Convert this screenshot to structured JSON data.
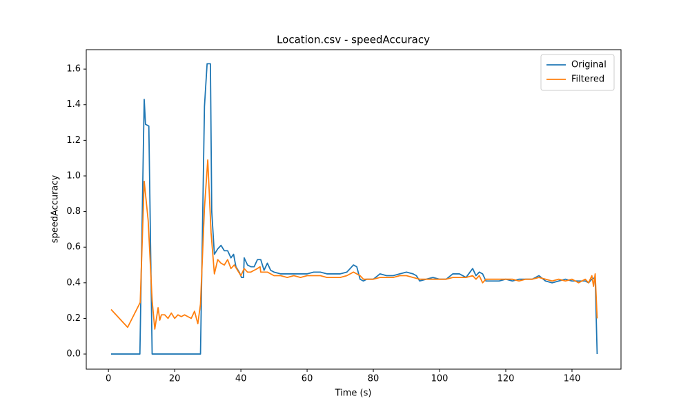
{
  "chart_data": {
    "type": "line",
    "title": "Location.csv - speedAccuracy",
    "x_label": "Time (s)",
    "y_label": "speedAccuracy",
    "xlim": [
      -6.7,
      154.8
    ],
    "ylim": [
      -0.085,
      1.709
    ],
    "xticks": [
      0,
      20,
      40,
      60,
      80,
      100,
      120,
      140
    ],
    "yticks": [
      {
        "value": 0,
        "label": "0.0"
      },
      0.2,
      0.4,
      0.6,
      0.8,
      {
        "value": 1,
        "label": "1.0"
      },
      1.2,
      1.4,
      1.6
    ],
    "legend": "upper right",
    "grid": false,
    "series": [
      {
        "name": "Original",
        "color": "#1f77b4",
        "x": [
          0.8,
          9.5,
          10.8,
          11.2,
          12.2,
          13.2,
          27.8,
          29,
          29.8,
          30.8,
          31.2,
          32,
          33,
          34,
          35,
          36,
          37,
          37.8,
          38.5,
          39.5,
          40.2,
          40.8,
          41,
          42,
          43,
          44,
          45,
          46,
          47,
          48,
          49,
          50,
          52,
          54,
          56,
          58,
          60,
          62,
          64,
          66,
          68,
          70,
          72,
          74,
          75,
          76,
          77,
          78,
          80,
          82,
          84,
          86,
          88,
          90,
          92,
          93,
          94,
          96,
          98,
          100,
          102,
          104,
          106,
          108,
          110,
          111,
          112,
          113,
          114,
          116,
          118,
          120,
          122,
          124,
          126,
          128,
          130,
          132,
          134,
          136,
          138,
          140,
          142,
          144,
          145,
          146,
          147,
          147.6
        ],
        "values": [
          0,
          0,
          1.43,
          1.29,
          1.28,
          0,
          0,
          1.39,
          1.63,
          1.63,
          0.8,
          0.56,
          0.59,
          0.61,
          0.58,
          0.58,
          0.54,
          0.56,
          0.49,
          0.46,
          0.43,
          0.43,
          0.54,
          0.5,
          0.49,
          0.49,
          0.53,
          0.53,
          0.47,
          0.51,
          0.47,
          0.46,
          0.45,
          0.45,
          0.45,
          0.45,
          0.45,
          0.46,
          0.46,
          0.45,
          0.45,
          0.45,
          0.46,
          0.5,
          0.49,
          0.42,
          0.41,
          0.42,
          0.42,
          0.45,
          0.44,
          0.44,
          0.45,
          0.46,
          0.45,
          0.44,
          0.41,
          0.42,
          0.43,
          0.42,
          0.42,
          0.45,
          0.45,
          0.43,
          0.48,
          0.44,
          0.46,
          0.45,
          0.41,
          0.41,
          0.41,
          0.42,
          0.41,
          0.42,
          0.42,
          0.42,
          0.44,
          0.41,
          0.4,
          0.41,
          0.42,
          0.41,
          0.41,
          0.41,
          0.4,
          0.42,
          0.43,
          0
        ]
      },
      {
        "name": "Filtered",
        "color": "#ff7f0e",
        "x": [
          0.8,
          5.8,
          9.6,
          10.8,
          12,
          13.2,
          14,
          15,
          15.5,
          16,
          17,
          18,
          19,
          20,
          21,
          22,
          23,
          24,
          25,
          26,
          27,
          27.8,
          29,
          30,
          31,
          32,
          33,
          34,
          35,
          36,
          37,
          38,
          39,
          40,
          41,
          42,
          43,
          44,
          45,
          45.8,
          46,
          48,
          50,
          52,
          54,
          56,
          58,
          60,
          62,
          64,
          66,
          68,
          70,
          72,
          74,
          76,
          77,
          78,
          80,
          82,
          84,
          86,
          88,
          90,
          92,
          94,
          96,
          98,
          100,
          102,
          104,
          106,
          108,
          110,
          111,
          112,
          113,
          114,
          116,
          118,
          120,
          122,
          124,
          126,
          128,
          130,
          132,
          134,
          136,
          138,
          140,
          142,
          144,
          145,
          146,
          146.5,
          147,
          147.6
        ],
        "values": [
          0.25,
          0.15,
          0.29,
          0.97,
          0.75,
          0.3,
          0.14,
          0.26,
          0.19,
          0.22,
          0.22,
          0.2,
          0.23,
          0.2,
          0.22,
          0.21,
          0.22,
          0.21,
          0.2,
          0.24,
          0.17,
          0.28,
          0.82,
          1.09,
          0.68,
          0.45,
          0.53,
          0.51,
          0.5,
          0.53,
          0.48,
          0.5,
          0.47,
          0.44,
          0.48,
          0.46,
          0.46,
          0.47,
          0.48,
          0.49,
          0.46,
          0.46,
          0.44,
          0.44,
          0.43,
          0.44,
          0.43,
          0.44,
          0.44,
          0.44,
          0.43,
          0.43,
          0.43,
          0.44,
          0.46,
          0.44,
          0.42,
          0.42,
          0.42,
          0.43,
          0.43,
          0.43,
          0.44,
          0.44,
          0.43,
          0.42,
          0.42,
          0.42,
          0.42,
          0.42,
          0.43,
          0.43,
          0.43,
          0.44,
          0.42,
          0.44,
          0.4,
          0.42,
          0.42,
          0.42,
          0.42,
          0.42,
          0.41,
          0.42,
          0.42,
          0.43,
          0.42,
          0.41,
          0.42,
          0.41,
          0.42,
          0.4,
          0.42,
          0.4,
          0.44,
          0.38,
          0.45,
          0.2
        ]
      }
    ]
  }
}
